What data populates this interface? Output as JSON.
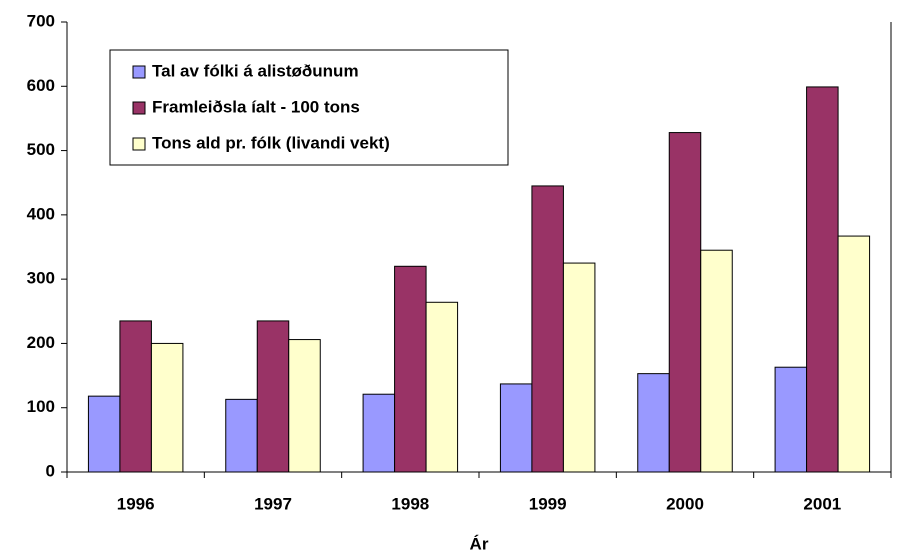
{
  "chart_data": {
    "type": "bar",
    "x_label": "Ár",
    "categories": [
      "1996",
      "1997",
      "1998",
      "1999",
      "2000",
      "2001"
    ],
    "series": [
      {
        "name": "Tal av fólki á alistøðunum",
        "color": "#9999ff",
        "values": [
          118,
          113,
          121,
          137,
          153,
          163
        ]
      },
      {
        "name": "Framleiðsla íalt - 100 tons",
        "color": "#993366",
        "values": [
          235,
          235,
          320,
          445,
          528,
          599
        ]
      },
      {
        "name": "Tons ald pr. fólk (livandi vekt)",
        "color": "#ffffcc",
        "values": [
          200,
          206,
          264,
          325,
          345,
          367
        ]
      }
    ],
    "ylim": [
      0,
      700
    ],
    "yticks": [
      0,
      100,
      200,
      300,
      400,
      500,
      600,
      700
    ],
    "grid": false,
    "legend": "top-left"
  }
}
